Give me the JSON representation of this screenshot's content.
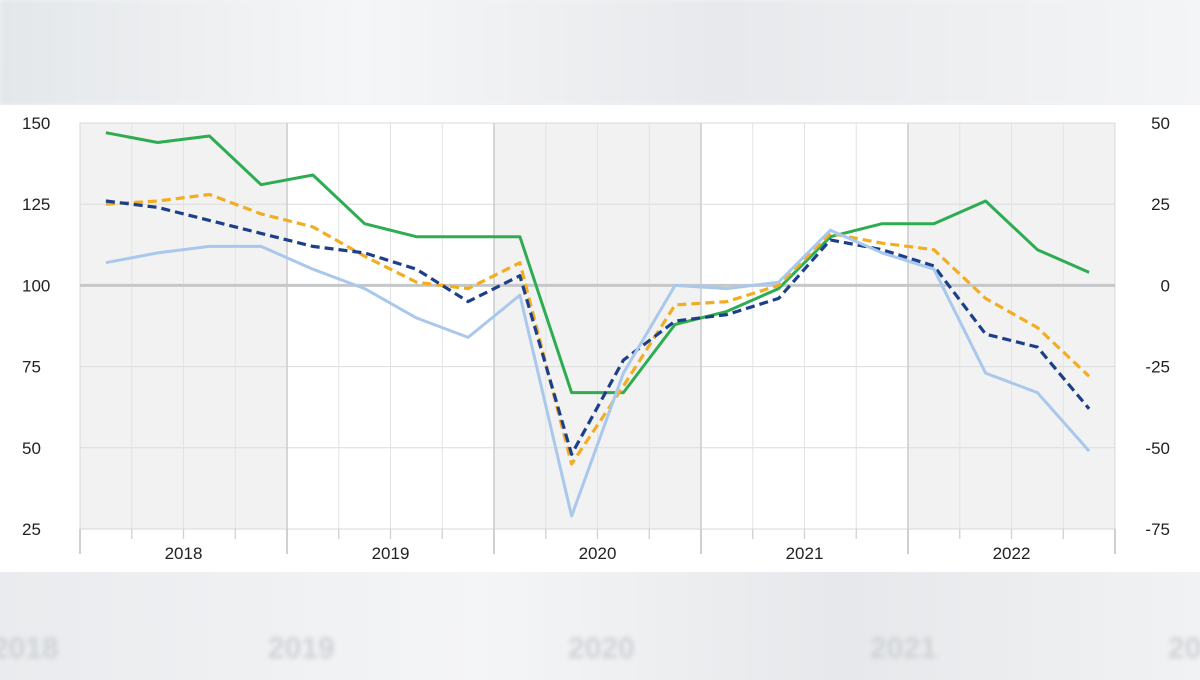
{
  "background_labels": [
    "2018",
    "2019",
    "2020",
    "2021",
    "2022"
  ],
  "chart_data": {
    "type": "line",
    "title": "",
    "xlabel": "",
    "ylabel": "",
    "year_labels": [
      "2018",
      "2019",
      "2020",
      "2021",
      "2022"
    ],
    "shaded_years": [
      "2018",
      "2020",
      "2022"
    ],
    "quarters": [
      "2018 Q1",
      "2018 Q2",
      "2018 Q3",
      "2018 Q4",
      "2019 Q1",
      "2019 Q2",
      "2019 Q3",
      "2019 Q4",
      "2020 Q1",
      "2020 Q2",
      "2020 Q3",
      "2020 Q4",
      "2021 Q1",
      "2021 Q2",
      "2021 Q3",
      "2021 Q4",
      "2022 Q1",
      "2022 Q2",
      "2022 Q3",
      "2022 Q4"
    ],
    "left_axis": {
      "range": [
        25,
        150
      ],
      "ticks": [
        "150",
        "125",
        "100",
        "75",
        "50",
        "25"
      ]
    },
    "right_axis": {
      "range": [
        -75,
        50
      ],
      "ticks": [
        "50",
        "25",
        "0",
        "-25",
        "-50",
        "-75"
      ]
    },
    "reference_line": 100,
    "grid": true,
    "series": [
      {
        "axis": "left",
        "color": "#2eac52",
        "dash": "solid",
        "x": [
          "2018 Q1",
          "2018 Q2",
          "2018 Q3",
          "2018 Q4",
          "2019 Q1",
          "2019 Q2",
          "2019 Q3",
          "2019 Q4",
          "2020 Q1",
          "2020 Q2",
          "2020 Q3",
          "2020 Q4",
          "2021 Q1",
          "2021 Q2",
          "2021 Q3",
          "2021 Q4",
          "2022 Q1",
          "2022 Q2",
          "2022 Q3",
          "2022 Q4"
        ],
        "values": [
          147,
          144,
          146,
          131,
          134,
          119,
          115,
          115,
          115,
          67,
          67,
          88,
          92,
          99,
          115,
          119,
          119,
          126,
          111,
          104
        ]
      },
      {
        "axis": "left",
        "color": "#f2ad22",
        "dash": "dashed",
        "x": [
          "2018 Q1",
          "2018 Q2",
          "2018 Q3",
          "2018 Q4",
          "2019 Q1",
          "2019 Q2",
          "2019 Q3",
          "2019 Q4",
          "2020 Q1",
          "2020 Q2",
          "2020 Q3",
          "2020 Q4",
          "2021 Q1",
          "2021 Q2",
          "2021 Q3",
          "2021 Q4",
          "2022 Q1",
          "2022 Q2",
          "2022 Q3",
          "2022 Q4"
        ],
        "values": [
          125,
          126,
          128,
          122,
          118,
          109,
          101,
          99,
          107,
          45,
          69,
          94,
          95,
          100,
          116,
          113,
          111,
          96,
          87,
          72
        ]
      },
      {
        "axis": "left",
        "color": "#1d3f8a",
        "dash": "dashed",
        "x": [
          "2018 Q1",
          "2018 Q2",
          "2018 Q3",
          "2018 Q4",
          "2019 Q1",
          "2019 Q2",
          "2019 Q3",
          "2019 Q4",
          "2020 Q1",
          "2020 Q2",
          "2020 Q3",
          "2020 Q4",
          "2021 Q1",
          "2021 Q2",
          "2021 Q3",
          "2021 Q4",
          "2022 Q1",
          "2022 Q2",
          "2022 Q3",
          "2022 Q4"
        ],
        "values": [
          126,
          124,
          120,
          116,
          112,
          110,
          105,
          95,
          103,
          48,
          77,
          89,
          91,
          96,
          114,
          111,
          106,
          85,
          81,
          62
        ]
      },
      {
        "axis": "left",
        "color": "#a9c8ec",
        "dash": "solid",
        "x": [
          "2018 Q1",
          "2018 Q2",
          "2018 Q3",
          "2018 Q4",
          "2019 Q1",
          "2019 Q2",
          "2019 Q3",
          "2019 Q4",
          "2020 Q1",
          "2020 Q2",
          "2020 Q3",
          "2020 Q4",
          "2021 Q1",
          "2021 Q2",
          "2021 Q3",
          "2021 Q4",
          "2022 Q1",
          "2022 Q2",
          "2022 Q3",
          "2022 Q4"
        ],
        "values": [
          107,
          110,
          112,
          112,
          105,
          99,
          90,
          84,
          97,
          29,
          73,
          100,
          99,
          101,
          117,
          110,
          105,
          73,
          67,
          49
        ]
      }
    ]
  }
}
